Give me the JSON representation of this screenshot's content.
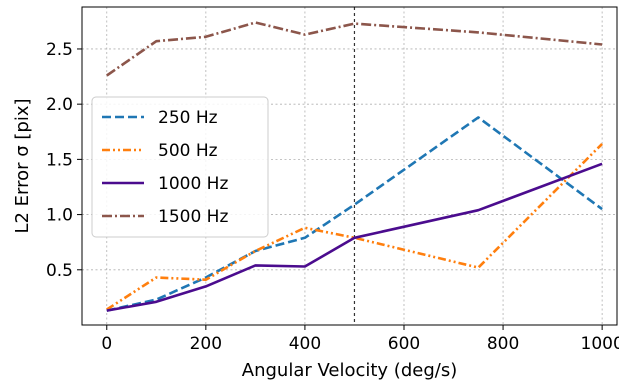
{
  "chart_data": {
    "type": "line",
    "xlabel": "Angular Velocity (deg/s)",
    "ylabel": "L2 Error σ [pix]",
    "xlim": [
      -50,
      1030
    ],
    "ylim": [
      0.0,
      2.88
    ],
    "xticks": [
      0,
      200,
      400,
      600,
      800,
      1000
    ],
    "yticks": [
      0.5,
      1.0,
      1.5,
      2.0,
      2.5
    ],
    "xtick_labels": [
      "0",
      "200",
      "400",
      "600",
      "800",
      "1000"
    ],
    "ytick_labels": [
      "0.5",
      "1.0",
      "1.5",
      "2.0",
      "2.5"
    ],
    "grid": true,
    "legend_position": "center-left",
    "vline_x": 500,
    "series": [
      {
        "name": "250 Hz",
        "color": "#1f77b4",
        "style": "dashed",
        "x": [
          0,
          100,
          200,
          300,
          400,
          500,
          750,
          1000
        ],
        "y": [
          0.13,
          0.23,
          0.43,
          0.67,
          0.79,
          1.09,
          1.88,
          1.05
        ]
      },
      {
        "name": "500 Hz",
        "color": "#ff7f0e",
        "style": "dashdotdot",
        "x": [
          0,
          100,
          200,
          300,
          400,
          500,
          750,
          1000
        ],
        "y": [
          0.14,
          0.43,
          0.41,
          0.67,
          0.88,
          0.79,
          0.52,
          1.64
        ]
      },
      {
        "name": "1000 Hz",
        "color": "#4b0c8e",
        "style": "solid",
        "x": [
          0,
          100,
          200,
          300,
          400,
          500,
          750,
          1000
        ],
        "y": [
          0.13,
          0.21,
          0.35,
          0.54,
          0.53,
          0.79,
          1.04,
          1.46
        ]
      },
      {
        "name": "1500 Hz",
        "color": "#8c564b",
        "style": "dashdot",
        "x": [
          0,
          100,
          200,
          300,
          400,
          500,
          750,
          1000
        ],
        "y": [
          2.26,
          2.57,
          2.61,
          2.74,
          2.63,
          2.73,
          2.65,
          2.54
        ]
      }
    ]
  }
}
